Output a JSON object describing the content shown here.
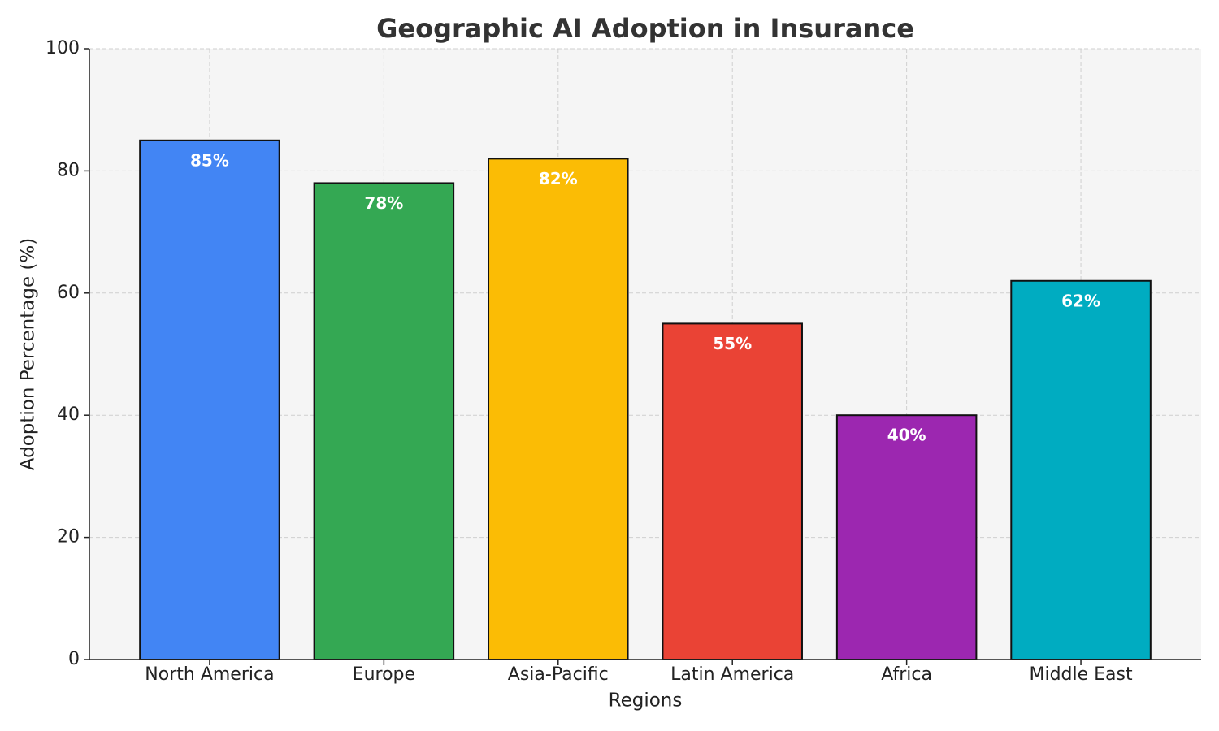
{
  "chart_data": {
    "type": "bar",
    "title": "Geographic AI Adoption in Insurance",
    "x_label": "Regions",
    "y_label": "Adoption Percentage (%)",
    "categories": [
      "North America",
      "Europe",
      "Asia-Pacific",
      "Latin America",
      "Africa",
      "Middle East"
    ],
    "values": [
      85,
      78,
      82,
      55,
      40,
      62
    ],
    "value_labels": [
      "85%",
      "78%",
      "82%",
      "55%",
      "40%",
      "62%"
    ],
    "colors": [
      "#4285f4",
      "#34a853",
      "#fbbc05",
      "#ea4335",
      "#9c27b0",
      "#00acc1"
    ],
    "ylim": [
      0,
      100
    ],
    "yticks": [
      0,
      20,
      40,
      60,
      80,
      100
    ],
    "grid": true
  }
}
